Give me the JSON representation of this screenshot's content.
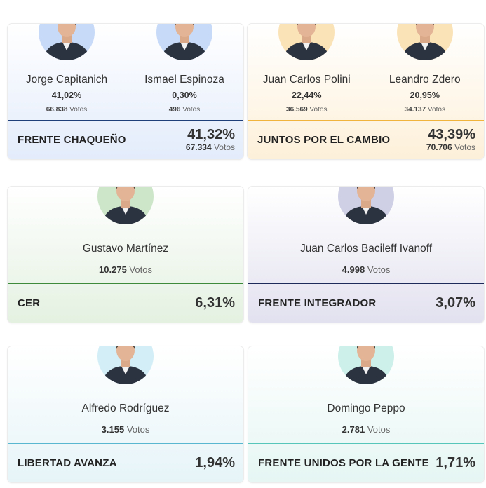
{
  "cards": [
    {
      "party": "FRENTE CHAQUEÑO",
      "percent": "41,32%",
      "votes": "67.334",
      "votes_label": "Votos",
      "colors": {
        "bg_top": "#ffffff",
        "bg_bottom": "#e3ecfb",
        "line": "#1f3f7a",
        "avatar_bg": "#c7daf7"
      },
      "candidates": [
        {
          "name": "Jorge Capitanich",
          "percent": "41,02%",
          "votes": "66.838",
          "votes_label": "Votos"
        },
        {
          "name": "Ismael Espinoza",
          "percent": "0,30%",
          "votes": "496",
          "votes_label": "Votos"
        }
      ]
    },
    {
      "party": "JUNTOS POR EL CAMBIO",
      "percent": "43,39%",
      "votes": "70.706",
      "votes_label": "Votos",
      "colors": {
        "bg_top": "#ffffff",
        "bg_bottom": "#fdf0d9",
        "line": "#f0b43c",
        "avatar_bg": "#fbe3b8"
      },
      "candidates": [
        {
          "name": "Juan Carlos Polini",
          "percent": "22,44%",
          "votes": "36.569",
          "votes_label": "Votos"
        },
        {
          "name": "Leandro Zdero",
          "percent": "20,95%",
          "votes": "34.137",
          "votes_label": "Votos"
        }
      ]
    },
    {
      "party": "CER",
      "percent": "6,31%",
      "colors": {
        "bg_top": "#ffffff",
        "bg_bottom": "#e4f1e1",
        "line": "#3c8a3a",
        "avatar_bg": "#cde6c9"
      },
      "candidates": [
        {
          "name": "Gustavo Martínez",
          "votes": "10.275",
          "votes_label": "Votos"
        }
      ]
    },
    {
      "party": "FRENTE INTEGRADOR",
      "percent": "3,07%",
      "colors": {
        "bg_top": "#ffffff",
        "bg_bottom": "#e2e1ef",
        "line": "#1e2a5a",
        "avatar_bg": "#cfcfe6"
      },
      "candidates": [
        {
          "name": "Juan Carlos Bacileff Ivanoff",
          "votes": "4.998",
          "votes_label": "Votos"
        }
      ]
    },
    {
      "party": "LIBERTAD AVANZA",
      "percent": "1,94%",
      "colors": {
        "bg_top": "#ffffff",
        "bg_bottom": "#e6f4f8",
        "line": "#59b7cf",
        "avatar_bg": "#d3eef6"
      },
      "candidates": [
        {
          "name": "Alfredo Rodríguez",
          "votes": "3.155",
          "votes_label": "Votos"
        }
      ]
    },
    {
      "party": "FRENTE UNIDOS POR LA GENTE",
      "percent": "1,71%",
      "colors": {
        "bg_top": "#ffffff",
        "bg_bottom": "#e5f6f3",
        "line": "#56c6bb",
        "avatar_bg": "#cdf0ea"
      },
      "candidates": [
        {
          "name": "Domingo Peppo",
          "votes": "2.781",
          "votes_label": "Votos"
        }
      ]
    }
  ]
}
